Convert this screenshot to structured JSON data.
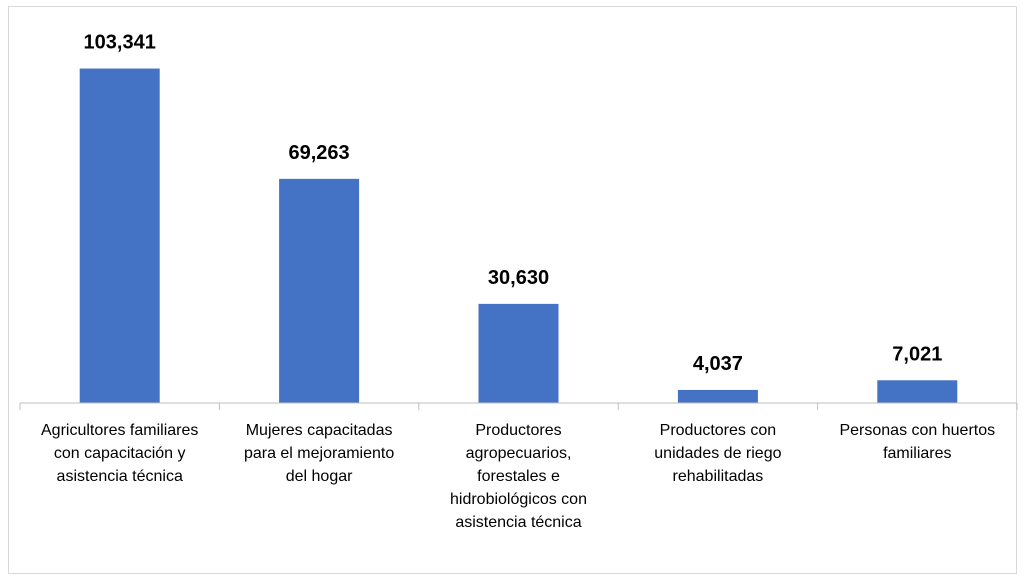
{
  "chart_data": {
    "type": "bar",
    "title": "",
    "xlabel": "",
    "ylabel": "",
    "categories": [
      [
        "Agricultores familiares",
        "con capacitación y",
        "asistencia técnica"
      ],
      [
        "Mujeres capacitadas",
        "para el mejoramiento",
        "del hogar"
      ],
      [
        "Productores",
        "agropecuarios,",
        "forestales e",
        "hidrobiológicos con",
        "asistencia técnica"
      ],
      [
        "Productores con",
        "unidades de riego",
        "rehabilitadas"
      ],
      [
        "Personas con huertos",
        "familiares"
      ]
    ],
    "values": [
      103341,
      69263,
      30630,
      4037,
      7021
    ],
    "data_labels": [
      "103,341",
      "69,263",
      "30,630",
      "4,037",
      "7,021"
    ],
    "bar_color": "#4472C4",
    "grid": false,
    "legend": false,
    "y_axis_visible": false,
    "ylim": [
      0,
      110000
    ]
  }
}
